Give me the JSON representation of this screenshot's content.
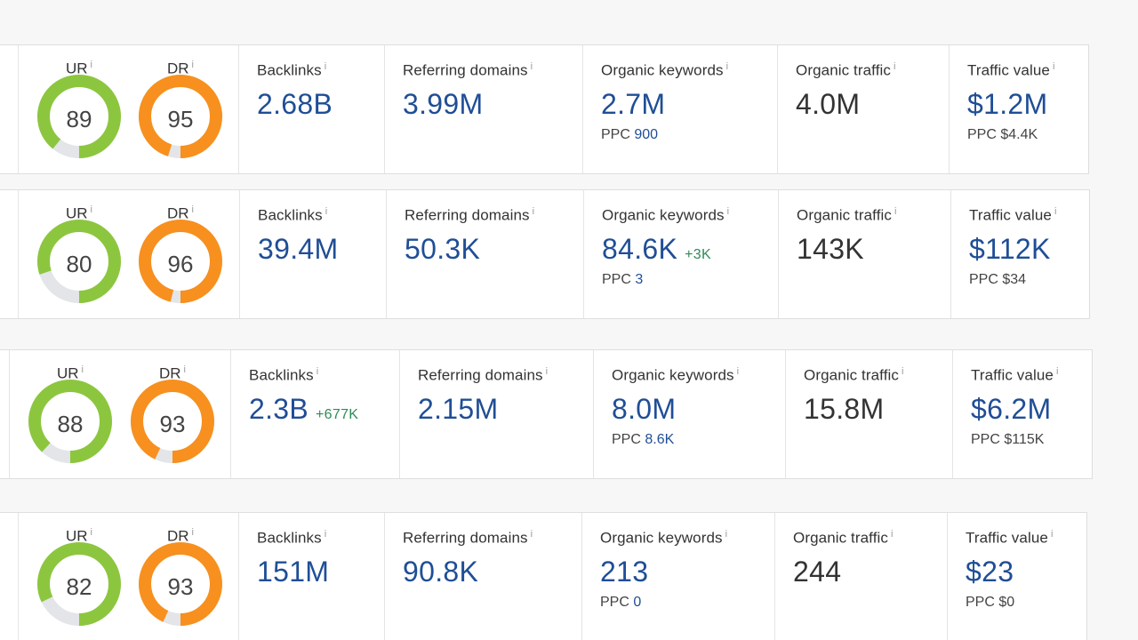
{
  "colors": {
    "ur_ring": "#8cc63f",
    "dr_ring": "#f7901e",
    "ring_track": "#e3e5e8",
    "link_blue": "#1f4e96",
    "delta_green": "#2e8b57"
  },
  "labels": {
    "ur": "UR",
    "dr": "DR",
    "backlinks": "Backlinks",
    "referring_domains": "Referring domains",
    "organic_keywords": "Organic keywords",
    "organic_traffic": "Organic traffic",
    "traffic_value": "Traffic value",
    "info_icon": "i",
    "ppc": "PPC"
  },
  "rows": [
    {
      "ur": 89,
      "ur_text": "89",
      "dr": 95,
      "dr_text": "95",
      "backlinks": "2.68B",
      "backlinks_delta": "",
      "referring_domains": "3.99M",
      "organic_keywords": "2.7M",
      "organic_keywords_delta": "",
      "keywords_ppc": "900",
      "organic_traffic": "4.0M",
      "traffic_value": "$1.2M",
      "traffic_ppc": "$4.4K"
    },
    {
      "ur": 80,
      "ur_text": "80",
      "dr": 96,
      "dr_text": "96",
      "backlinks": "39.4M",
      "backlinks_delta": "",
      "referring_domains": "50.3K",
      "organic_keywords": "84.6K",
      "organic_keywords_delta": "+3K",
      "keywords_ppc": "3",
      "organic_traffic": "143K",
      "traffic_value": "$112K",
      "traffic_ppc": "$34"
    },
    {
      "ur": 88,
      "ur_text": "88",
      "dr": 93,
      "dr_text": "93",
      "backlinks": "2.3B",
      "backlinks_delta": "+677K",
      "referring_domains": "2.15M",
      "organic_keywords": "8.0M",
      "organic_keywords_delta": "",
      "keywords_ppc": "8.6K",
      "organic_traffic": "15.8M",
      "traffic_value": "$6.2M",
      "traffic_ppc": "$115K"
    },
    {
      "ur": 82,
      "ur_text": "82",
      "dr": 93,
      "dr_text": "93",
      "backlinks": "151M",
      "backlinks_delta": "",
      "referring_domains": "90.8K",
      "organic_keywords": "213",
      "organic_keywords_delta": "",
      "keywords_ppc": "0",
      "organic_traffic": "244",
      "traffic_value": "$23",
      "traffic_ppc": "$0"
    }
  ]
}
